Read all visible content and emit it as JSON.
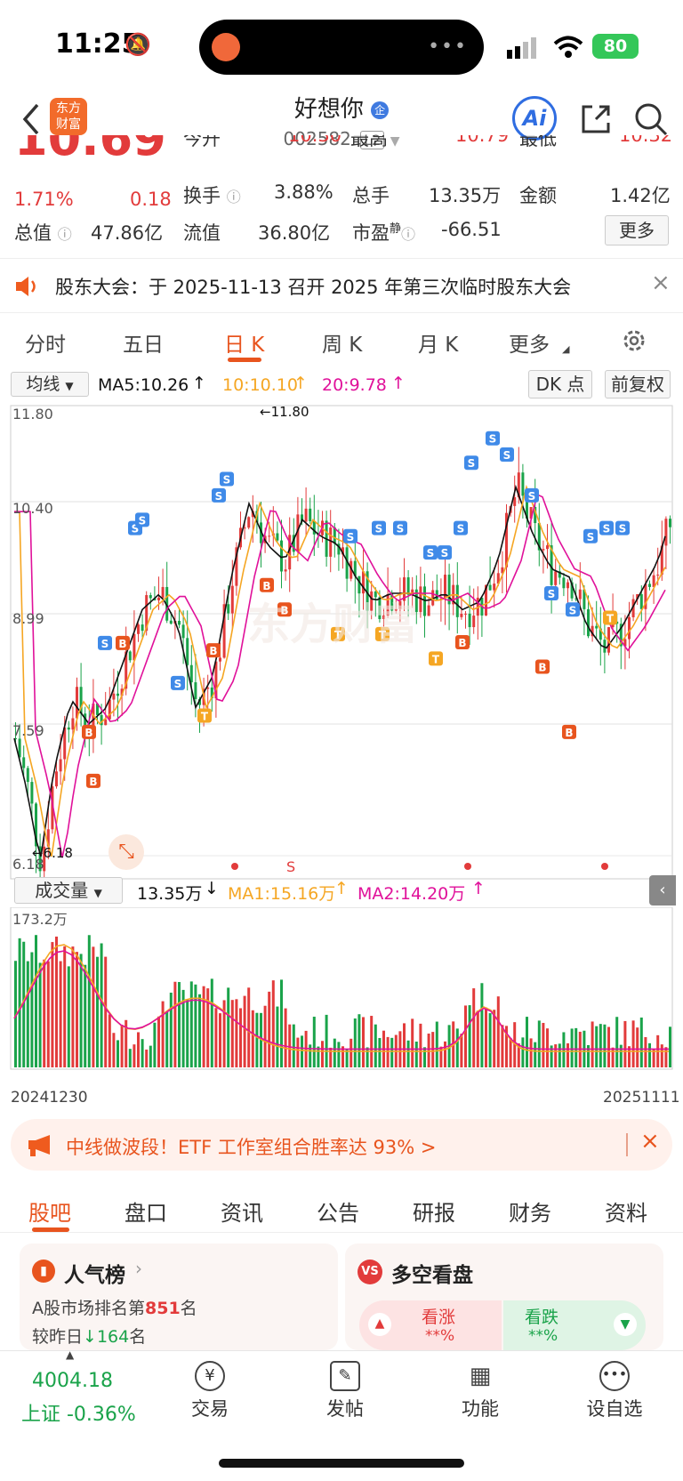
{
  "status": {
    "time": "11:25",
    "battery": "80"
  },
  "nav": {
    "title": "好想你",
    "code": "002582",
    "level": "L2",
    "logo_top": "东方",
    "logo_bottom": "财富"
  },
  "quote": {
    "price": "10.69",
    "chg_pct": "1.71%",
    "chg": "0.18",
    "row0": {
      "open_label": "今开",
      "open": "10.30",
      "high_label": "最高",
      "high": "10.79",
      "low_label": "最低",
      "low": "10.32"
    },
    "turnover_label": "换手",
    "turnover": "3.88%",
    "volume_label": "总手",
    "volume": "13.35万",
    "amount_label": "金额",
    "amount": "1.42亿",
    "mktcap_label": "总值",
    "mktcap": "47.86亿",
    "float_label": "流值",
    "float": "36.80亿",
    "pe_label": "市盈",
    "pe_sup": "静",
    "pe": "-66.51",
    "more": "更多"
  },
  "notice": {
    "text": "股东大会：于 2025-11-13 召开 2025 年第三次临时股东大会",
    "close": "×"
  },
  "period_tabs": [
    "分时",
    "五日",
    "日 K",
    "周 K",
    "月 K",
    "更多"
  ],
  "ma": {
    "select": "均线",
    "ma5": "MA5:10.26",
    "ma10": "10:10.10",
    "ma20": "20:9.78",
    "dk": "DK 点",
    "adjust": "前复权"
  },
  "kline": {
    "y_labels": [
      "11.80",
      "10.40",
      "8.99",
      "7.59",
      "6.18"
    ],
    "high_marker": "11.80",
    "low_marker": "6.18",
    "watermark": "东方财富"
  },
  "vol": {
    "select": "成交量",
    "value": "13.35万",
    "ma1": "MA1:15.16万",
    "ma2": "MA2:14.20万",
    "max_label": "173.2万",
    "start_date": "20241230",
    "end_date": "20251111"
  },
  "promo": {
    "text": "中线做波段！ETF 工作室组合胜率达 93% >"
  },
  "sub_tabs": [
    "股吧",
    "盘口",
    "资讯",
    "公告",
    "研报",
    "财务",
    "资料"
  ],
  "card_left": {
    "title": "人气榜",
    "line1_pre": "A股市场排名第",
    "rank": "851",
    "line1_post": "名",
    "line2_pre": "较昨日",
    "delta": "164",
    "line2_post": "名"
  },
  "card_right": {
    "title": "多空看盘",
    "bull": "看涨",
    "bear": "看跌",
    "bull_val": "**%",
    "bear_val": "**%"
  },
  "bottom": {
    "index_value": "4004.18",
    "index_label": "上证 -0.36%",
    "items": [
      "交易",
      "发帖",
      "功能",
      "设自选"
    ]
  },
  "colors": {
    "accent": "#e8541e",
    "up": "#e23b3b",
    "down": "#1aa34a",
    "ma10": "#f5a623",
    "ma20": "#e0119a"
  }
}
